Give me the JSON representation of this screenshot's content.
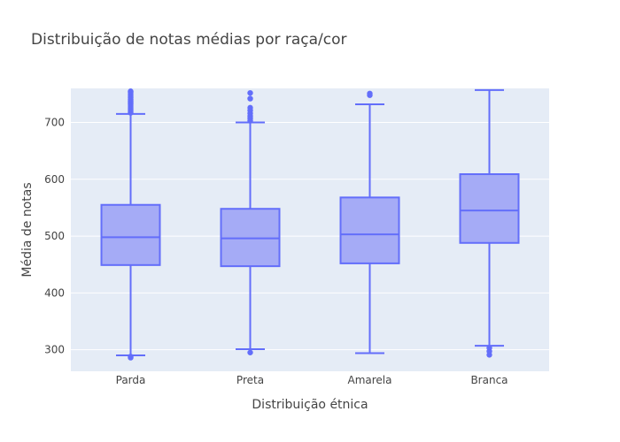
{
  "chart_data": {
    "type": "box",
    "title": "Distribuição de notas médias por raça/cor",
    "xlabel": "Distribuição étnica",
    "ylabel": "Média de notas",
    "ylim": [
      262,
      760
    ],
    "yticks": [
      300,
      400,
      500,
      600,
      700
    ],
    "grid": true,
    "colors": {
      "plot_bg": "#e5ecf6",
      "grid": "#ffffff",
      "box_line": "#636efa",
      "box_fill": "#a5abf6"
    },
    "categories": [
      "Parda",
      "Preta",
      "Amarela",
      "Branca"
    ],
    "boxes": [
      {
        "category": "Parda",
        "lower_whisker": 290,
        "q1": 449,
        "median": 498,
        "q3": 555,
        "upper_whisker": 715,
        "outliers": [
          286,
          288,
          717,
          720,
          723,
          726,
          729,
          732,
          735,
          738,
          741,
          744,
          747,
          750,
          753,
          755
        ]
      },
      {
        "category": "Preta",
        "lower_whisker": 301,
        "q1": 447,
        "median": 496,
        "q3": 548,
        "upper_whisker": 700,
        "outliers": [
          295,
          703,
          707,
          711,
          716,
          721,
          726,
          742,
          752
        ]
      },
      {
        "category": "Amarela",
        "lower_whisker": 294,
        "q1": 452,
        "median": 503,
        "q3": 568,
        "upper_whisker": 732,
        "outliers": [
          748,
          751
        ]
      },
      {
        "category": "Branca",
        "lower_whisker": 307,
        "q1": 488,
        "median": 545,
        "q3": 609,
        "upper_whisker": 757,
        "outliers": [
          291,
          297,
          303
        ]
      }
    ]
  }
}
